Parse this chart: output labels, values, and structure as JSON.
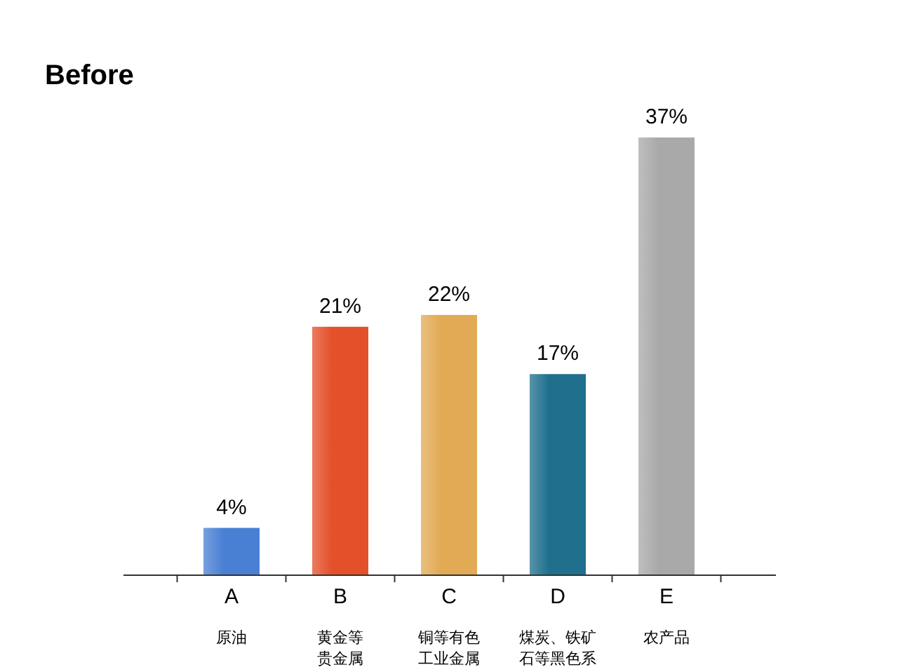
{
  "chart_data": {
    "type": "bar",
    "title": "Before",
    "categories": [
      "A",
      "B",
      "C",
      "D",
      "E"
    ],
    "values": [
      4,
      21,
      22,
      17,
      37
    ],
    "value_labels": [
      "4%",
      "21%",
      "22%",
      "17%",
      "37%"
    ],
    "colors": [
      "#4a80d4",
      "#e4502a",
      "#e2aa55",
      "#1f6f8d",
      "#a9a9a9"
    ],
    "annotations": [
      "原油",
      "黄金等贵金属",
      "铜等有色工业金属",
      "煤炭、铁矿石等黑色系",
      "农产品"
    ]
  }
}
